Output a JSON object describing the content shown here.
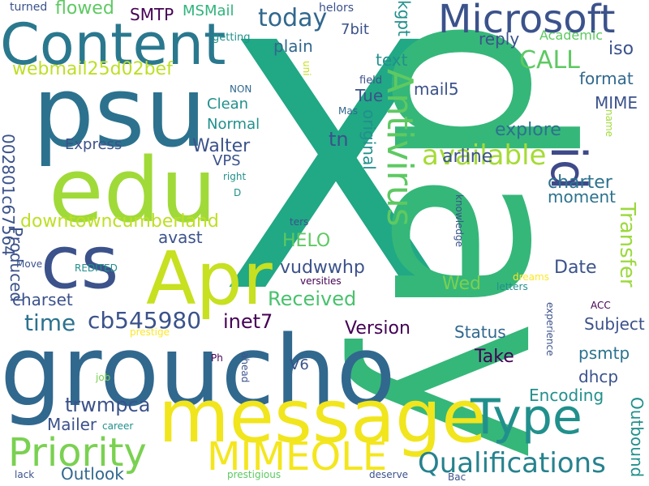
{
  "background": "#ffffff",
  "palette": {
    "purple": "#440154",
    "indigo": "#3b528b",
    "blue": "#31688e",
    "teal": "#21908c",
    "green": "#35b779",
    "lime": "#90d743",
    "yellow": "#fde725"
  },
  "words": [
    {
      "text": "X",
      "color": "#21a885"
    },
    {
      "text": "day",
      "color": "#35b779"
    },
    {
      "text": "groucho",
      "color": "#31688e"
    },
    {
      "text": "psu",
      "color": "#2c728e"
    },
    {
      "text": "edu",
      "color": "#a0da39"
    },
    {
      "text": "message",
      "color": "#f1e51d"
    },
    {
      "text": "Content",
      "color": "#2a788e"
    },
    {
      "text": "Microsoft",
      "color": "#3b528b"
    },
    {
      "text": "cs",
      "color": "#3b528b"
    },
    {
      "text": "Apr",
      "color": "#c7e020"
    },
    {
      "text": "id",
      "color": "#3e4a89"
    },
    {
      "text": "Type",
      "color": "#21908c"
    },
    {
      "text": "Priority",
      "color": "#7ad151"
    },
    {
      "text": "MIMEOLE",
      "color": "#f4e61e"
    },
    {
      "text": "Qualifications",
      "color": "#26828e"
    },
    {
      "text": "Antivirus",
      "color": "#5ec962"
    },
    {
      "text": "available",
      "color": "#a5db36"
    },
    {
      "text": "today",
      "color": "#31688e"
    },
    {
      "text": "CALL",
      "color": "#5ec962"
    },
    {
      "text": "Transfer",
      "color": "#9bd93c"
    },
    {
      "text": "time",
      "color": "#2c728e"
    },
    {
      "text": "cb545980",
      "color": "#3b528b"
    },
    {
      "text": "inet7",
      "color": "#440154"
    },
    {
      "text": "Received",
      "color": "#4ac16d"
    },
    {
      "text": "webmail25d02bef",
      "color": "#bddf26"
    },
    {
      "text": "downtowncumberland",
      "color": "#bddf26"
    },
    {
      "text": "002801c67564",
      "color": "#3b528b"
    },
    {
      "text": "vudwwhp",
      "color": "#3b528b"
    },
    {
      "text": "Version",
      "color": "#440154"
    },
    {
      "text": "charter",
      "color": "#2c728e"
    },
    {
      "text": "Walter",
      "color": "#3b528b"
    },
    {
      "text": "flowed",
      "color": "#5ec962"
    },
    {
      "text": "SMTP",
      "color": "#440154"
    },
    {
      "text": "MSMail",
      "color": "#2fb47c"
    },
    {
      "text": "plain",
      "color": "#31688e"
    },
    {
      "text": "reply",
      "color": "#3b528b"
    },
    {
      "text": "Academic",
      "color": "#5ec962"
    },
    {
      "text": "iso",
      "color": "#3b528b"
    },
    {
      "text": "format",
      "color": "#31688e"
    },
    {
      "text": "MIME",
      "color": "#3b528b"
    },
    {
      "text": "explore",
      "color": "#2c728e"
    },
    {
      "text": "arline",
      "color": "#3b528b"
    },
    {
      "text": "moment",
      "color": "#2c728e"
    },
    {
      "text": "Date",
      "color": "#3b528b"
    },
    {
      "text": "Subject",
      "color": "#3b528b"
    },
    {
      "text": "psmtp",
      "color": "#2c728e"
    },
    {
      "text": "dhcp",
      "color": "#3b528b"
    },
    {
      "text": "Take",
      "color": "#440154"
    },
    {
      "text": "Status",
      "color": "#31688e"
    },
    {
      "text": "Encoding",
      "color": "#21908c"
    },
    {
      "text": "Outbound",
      "color": "#21908c"
    },
    {
      "text": "Mailer",
      "color": "#3b528b"
    },
    {
      "text": "Outlook",
      "color": "#31688e"
    },
    {
      "text": "HELO",
      "color": "#5ec962"
    },
    {
      "text": "Wed",
      "color": "#7ad151"
    },
    {
      "text": "avast",
      "color": "#3b528b"
    },
    {
      "text": "charset",
      "color": "#3b528b"
    },
    {
      "text": "Express",
      "color": "#3b528b"
    },
    {
      "text": "Produced",
      "color": "#3b528b"
    },
    {
      "text": "Clean",
      "color": "#21908c"
    },
    {
      "text": "Normal",
      "color": "#21908c"
    },
    {
      "text": "VPS",
      "color": "#3b528b"
    },
    {
      "text": "tn",
      "color": "#3b528b"
    },
    {
      "text": "Tue",
      "color": "#3b528b"
    },
    {
      "text": "original",
      "color": "#21908c"
    },
    {
      "text": "kgpt",
      "color": "#21908c"
    },
    {
      "text": "text",
      "color": "#21908c"
    },
    {
      "text": "7bit",
      "color": "#3b528b"
    },
    {
      "text": "mail5",
      "color": "#3b528b"
    },
    {
      "text": "trwmpca",
      "color": "#3b528b"
    },
    {
      "text": "V6",
      "color": "#3b528b"
    },
    {
      "text": "helors",
      "color": "#3b528b"
    },
    {
      "text": "turned",
      "color": "#3b528b"
    },
    {
      "text": "getting",
      "color": "#21908c"
    },
    {
      "text": "uni",
      "color": "#c7e020"
    },
    {
      "text": "NON",
      "color": "#31688e"
    },
    {
      "text": "Mas",
      "color": "#31688e"
    },
    {
      "text": "field",
      "color": "#3b528b"
    },
    {
      "text": "name",
      "color": "#a0da39"
    },
    {
      "text": "right",
      "color": "#21908c"
    },
    {
      "text": "D",
      "color": "#21908c"
    },
    {
      "text": "ters",
      "color": "#3b528b"
    },
    {
      "text": "knowledge",
      "color": "#3b528b"
    },
    {
      "text": "Move",
      "color": "#3b528b"
    },
    {
      "text": "REDITED",
      "color": "#21908c"
    },
    {
      "text": "versities",
      "color": "#440154"
    },
    {
      "text": "dreams",
      "color": "#fde725"
    },
    {
      "text": "letters",
      "color": "#21908c"
    },
    {
      "text": "ACC",
      "color": "#440154"
    },
    {
      "text": "prestige",
      "color": "#fde725"
    },
    {
      "text": "experience",
      "color": "#3b528b"
    },
    {
      "text": "Ph",
      "color": "#440154"
    },
    {
      "text": "ahead",
      "color": "#3b528b"
    },
    {
      "text": "job",
      "color": "#7ad151"
    },
    {
      "text": "career",
      "color": "#21908c"
    },
    {
      "text": "lack",
      "color": "#3b528b"
    },
    {
      "text": "prestigious",
      "color": "#5ec962"
    },
    {
      "text": "deserve",
      "color": "#3b528b"
    },
    {
      "text": "Bac",
      "color": "#3b528b"
    }
  ]
}
